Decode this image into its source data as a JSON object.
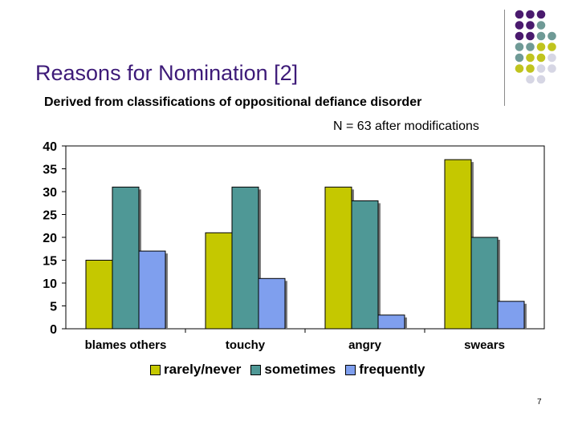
{
  "slide": {
    "title": "Reasons for Nomination [2]",
    "page_number": "7"
  },
  "chart_data": {
    "type": "bar",
    "title": "Derived from classifications of oppositional defiance disorder",
    "annotation": "N = 63 after modifications",
    "categories": [
      "blames others",
      "touchy",
      "angry",
      "swears"
    ],
    "series": [
      {
        "name": "rarely/never",
        "values": [
          15,
          21,
          31,
          37
        ],
        "color": "#c5c800"
      },
      {
        "name": "sometimes",
        "values": [
          31,
          31,
          28,
          20
        ],
        "color": "#4f9896"
      },
      {
        "name": "frequently",
        "values": [
          17,
          11,
          3,
          6
        ],
        "color": "#7f9fee"
      }
    ],
    "ylim": [
      0,
      40
    ],
    "y_ticks": [
      "0",
      "5",
      "10",
      "15",
      "20",
      "25",
      "30",
      "35",
      "40"
    ],
    "xlabel": "",
    "ylabel": "",
    "grid": false,
    "legend_position": "bottom"
  },
  "decoration": {
    "dot_colors": [
      "#4a1a6e",
      "#6f9a96",
      "#c0c41e",
      "#d6d6e4"
    ]
  }
}
